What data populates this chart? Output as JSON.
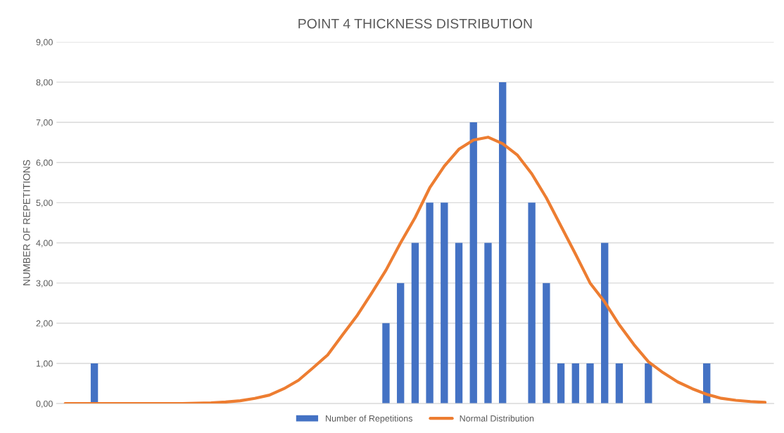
{
  "chart_data": {
    "type": "bar",
    "title": "POINT 4 THICKNESS DISTRIBUTION",
    "ylabel": "NUMBER OF REPETITIONS",
    "categories": [
      null,
      null,
      null,
      null,
      null,
      null,
      null,
      null,
      null,
      null,
      null,
      null,
      null,
      null,
      null,
      null,
      null,
      null,
      null,
      null,
      null,
      null,
      null,
      null,
      null,
      null,
      null,
      null,
      null,
      null,
      null,
      null,
      null,
      null,
      null,
      null,
      null,
      null,
      null,
      null,
      null,
      null,
      null,
      null,
      null,
      null,
      null,
      null,
      null
    ],
    "series": [
      {
        "name": "Number of Repetitions",
        "color": "#4472c4",
        "values": [
          0,
          0,
          1,
          0,
          0,
          0,
          0,
          0,
          0,
          0,
          0,
          0,
          0,
          0,
          0,
          0,
          0,
          0,
          0,
          0,
          0,
          0,
          2,
          3,
          4,
          5,
          5,
          4,
          7,
          4,
          8,
          0,
          5,
          3,
          1,
          1,
          1,
          4,
          1,
          0,
          1,
          0,
          0,
          0,
          1,
          0,
          0,
          0,
          0
        ]
      },
      {
        "name": "Normal Distribution",
        "type": "line",
        "color": "#ed7d31",
        "values": [
          0,
          0,
          0,
          0,
          0,
          0,
          0,
          0,
          0,
          0.01,
          0.02,
          0.04,
          0.07,
          0.13,
          0.21,
          0.37,
          0.58,
          0.89,
          1.21,
          1.7,
          2.18,
          2.74,
          3.32,
          4.0,
          4.63,
          5.37,
          5.91,
          6.33,
          6.56,
          6.63,
          6.47,
          6.19,
          5.72,
          5.12,
          4.42,
          3.72,
          3.0,
          2.53,
          1.96,
          1.47,
          1.04,
          0.77,
          0.54,
          0.37,
          0.23,
          0.13,
          0.08,
          0.05,
          0.03
        ]
      }
    ],
    "ylim": [
      0,
      9
    ],
    "yticks": [
      {
        "value": 0,
        "label": "0,00"
      },
      {
        "value": 1,
        "label": "1,00"
      },
      {
        "value": 2,
        "label": "2,00"
      },
      {
        "value": 3,
        "label": "3,00"
      },
      {
        "value": 4,
        "label": "4,00"
      },
      {
        "value": 5,
        "label": "5,00"
      },
      {
        "value": 6,
        "label": "6,00"
      },
      {
        "value": 7,
        "label": "7,00"
      },
      {
        "value": 8,
        "label": "8,00"
      },
      {
        "value": 9,
        "label": "9,00"
      }
    ],
    "grid": "y",
    "legend": "bottom",
    "marker": "none",
    "line_style": "solid"
  }
}
